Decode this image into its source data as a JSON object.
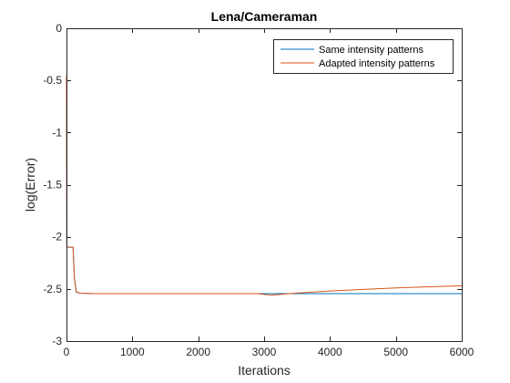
{
  "chart_data": {
    "type": "line",
    "title": "Lena/Cameraman",
    "xlabel": "Iterations",
    "ylabel": "log(Error)",
    "xlim": [
      0,
      6000
    ],
    "ylim": [
      -3,
      0
    ],
    "xticks": [
      0,
      1000,
      2000,
      3000,
      4000,
      5000,
      6000
    ],
    "yticks": [
      0,
      -0.5,
      -1,
      -1.5,
      -2,
      -2.5,
      -3
    ],
    "xtick_labels": [
      "0",
      "1000",
      "2000",
      "3000",
      "4000",
      "5000",
      "6000"
    ],
    "ytick_labels": [
      "0",
      "-0.5",
      "-1",
      "-1.5",
      "-2",
      "-2.5",
      "-3"
    ],
    "grid": false,
    "legend_position": "top-right",
    "series": [
      {
        "name": "Same intensity patterns",
        "color": "#0072BD",
        "x": [
          0,
          5,
          10,
          60,
          100,
          120,
          150,
          200,
          400,
          1000,
          2000,
          3000,
          3500,
          4000,
          5000,
          6000
        ],
        "y": [
          -0.45,
          -2.1,
          -2.1,
          -2.1,
          -2.1,
          -2.4,
          -2.53,
          -2.54,
          -2.545,
          -2.545,
          -2.545,
          -2.545,
          -2.545,
          -2.545,
          -2.545,
          -2.545
        ]
      },
      {
        "name": "Adapted intensity patterns",
        "color": "#D95319",
        "x": [
          0,
          5,
          10,
          60,
          100,
          120,
          150,
          200,
          400,
          1000,
          2000,
          2900,
          3100,
          3300,
          3500,
          4000,
          4500,
          5000,
          5500,
          6000
        ],
        "y": [
          -0.45,
          -2.1,
          -2.1,
          -2.1,
          -2.1,
          -2.4,
          -2.53,
          -2.54,
          -2.545,
          -2.545,
          -2.545,
          -2.545,
          -2.56,
          -2.55,
          -2.54,
          -2.52,
          -2.505,
          -2.49,
          -2.48,
          -2.47
        ]
      }
    ]
  }
}
